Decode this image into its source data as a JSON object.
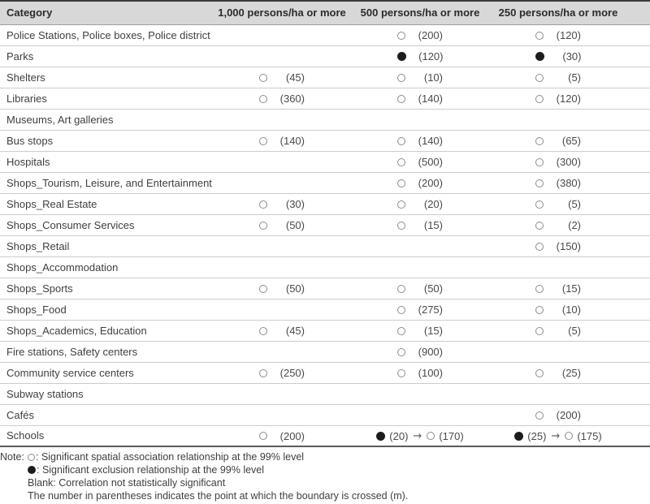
{
  "symbols": {
    "open": "○",
    "filled": "●",
    "arrow": "→"
  },
  "colors": {
    "header_bg": "#d8d8d8",
    "open_circle": "#8c8c8c",
    "filled_circle": "#1c1c1c",
    "top_border": "#3a3a3a",
    "row_border": "#cccccc"
  },
  "table": {
    "headers": [
      "Category",
      "1,000 persons/ha or more",
      "500 persons/ha or more",
      "250 persons/ha or more"
    ],
    "rows": [
      {
        "category": "Police Stations, Police boxes, Police district",
        "cells": [
          [],
          [
            [
              "open",
              "(200)"
            ]
          ],
          [
            [
              "open",
              "(120)"
            ]
          ]
        ]
      },
      {
        "category": "Parks",
        "cells": [
          [],
          [
            [
              "filled",
              "(120)"
            ]
          ],
          [
            [
              "filled",
              "(30)"
            ]
          ]
        ]
      },
      {
        "category": "Shelters",
        "cells": [
          [
            [
              "open",
              "(45)"
            ]
          ],
          [
            [
              "open",
              "(10)"
            ]
          ],
          [
            [
              "open",
              "(5)"
            ]
          ]
        ]
      },
      {
        "category": "Libraries",
        "cells": [
          [
            [
              "open",
              "(360)"
            ]
          ],
          [
            [
              "open",
              "(140)"
            ]
          ],
          [
            [
              "open",
              "(120)"
            ]
          ]
        ]
      },
      {
        "category": "Museums, Art galleries",
        "cells": [
          [],
          [],
          []
        ]
      },
      {
        "category": "Bus stops",
        "cells": [
          [
            [
              "open",
              "(140)"
            ]
          ],
          [
            [
              "open",
              "(140)"
            ]
          ],
          [
            [
              "open",
              "(65)"
            ]
          ]
        ]
      },
      {
        "category": "Hospitals",
        "cells": [
          [],
          [
            [
              "open",
              "(500)"
            ]
          ],
          [
            [
              "open",
              "(300)"
            ]
          ]
        ]
      },
      {
        "category": "Shops_Tourism, Leisure, and Entertainment",
        "cells": [
          [],
          [
            [
              "open",
              "(200)"
            ]
          ],
          [
            [
              "open",
              "(380)"
            ]
          ]
        ]
      },
      {
        "category": "Shops_Real Estate",
        "cells": [
          [
            [
              "open",
              "(30)"
            ]
          ],
          [
            [
              "open",
              "(20)"
            ]
          ],
          [
            [
              "open",
              "(5)"
            ]
          ]
        ]
      },
      {
        "category": "Shops_Consumer Services",
        "cells": [
          [
            [
              "open",
              "(50)"
            ]
          ],
          [
            [
              "open",
              "(15)"
            ]
          ],
          [
            [
              "open",
              "(2)"
            ]
          ]
        ]
      },
      {
        "category": "Shops_Retail",
        "cells": [
          [],
          [],
          [
            [
              "open",
              "(150)"
            ]
          ]
        ]
      },
      {
        "category": "Shops_Accommodation",
        "cells": [
          [],
          [],
          []
        ]
      },
      {
        "category": "Shops_Sports",
        "cells": [
          [
            [
              "open",
              "(50)"
            ]
          ],
          [
            [
              "open",
              "(50)"
            ]
          ],
          [
            [
              "open",
              "(15)"
            ]
          ]
        ]
      },
      {
        "category": "Shops_Food",
        "cells": [
          [],
          [
            [
              "open",
              "(275)"
            ]
          ],
          [
            [
              "open",
              "(10)"
            ]
          ]
        ]
      },
      {
        "category": "Shops_Academics, Education",
        "cells": [
          [
            [
              "open",
              "(45)"
            ]
          ],
          [
            [
              "open",
              "(15)"
            ]
          ],
          [
            [
              "open",
              "(5)"
            ]
          ]
        ]
      },
      {
        "category": "Fire stations, Safety centers",
        "cells": [
          [],
          [
            [
              "open",
              "(900)"
            ]
          ],
          []
        ]
      },
      {
        "category": "Community service centers",
        "cells": [
          [
            [
              "open",
              "(250)"
            ]
          ],
          [
            [
              "open",
              "(100)"
            ]
          ],
          [
            [
              "open",
              "(25)"
            ]
          ]
        ]
      },
      {
        "category": "Subway stations",
        "cells": [
          [],
          [],
          []
        ]
      },
      {
        "category": "Cafés",
        "cells": [
          [],
          [],
          [
            [
              "open",
              "(200)"
            ]
          ]
        ]
      },
      {
        "category": "Schools",
        "cells": [
          [
            [
              "open",
              "(200)"
            ]
          ],
          [
            [
              "filled",
              "(20)"
            ],
            [
              "open",
              "(170)"
            ]
          ],
          [
            [
              "filled",
              "(25)"
            ],
            [
              "open",
              "(175)"
            ]
          ]
        ]
      }
    ]
  },
  "notes": {
    "label": "Note:",
    "lines": [
      {
        "symbol": "open",
        "text": ": Significant spatial association relationship at the 99% level"
      },
      {
        "symbol": "filled",
        "text": ": Significant exclusion relationship at the 99% level"
      },
      {
        "symbol": null,
        "text": "Blank: Correlation not statistically significant"
      },
      {
        "symbol": null,
        "text": "The number in parentheses indicates the point at which the boundary is crossed (m)."
      }
    ]
  }
}
